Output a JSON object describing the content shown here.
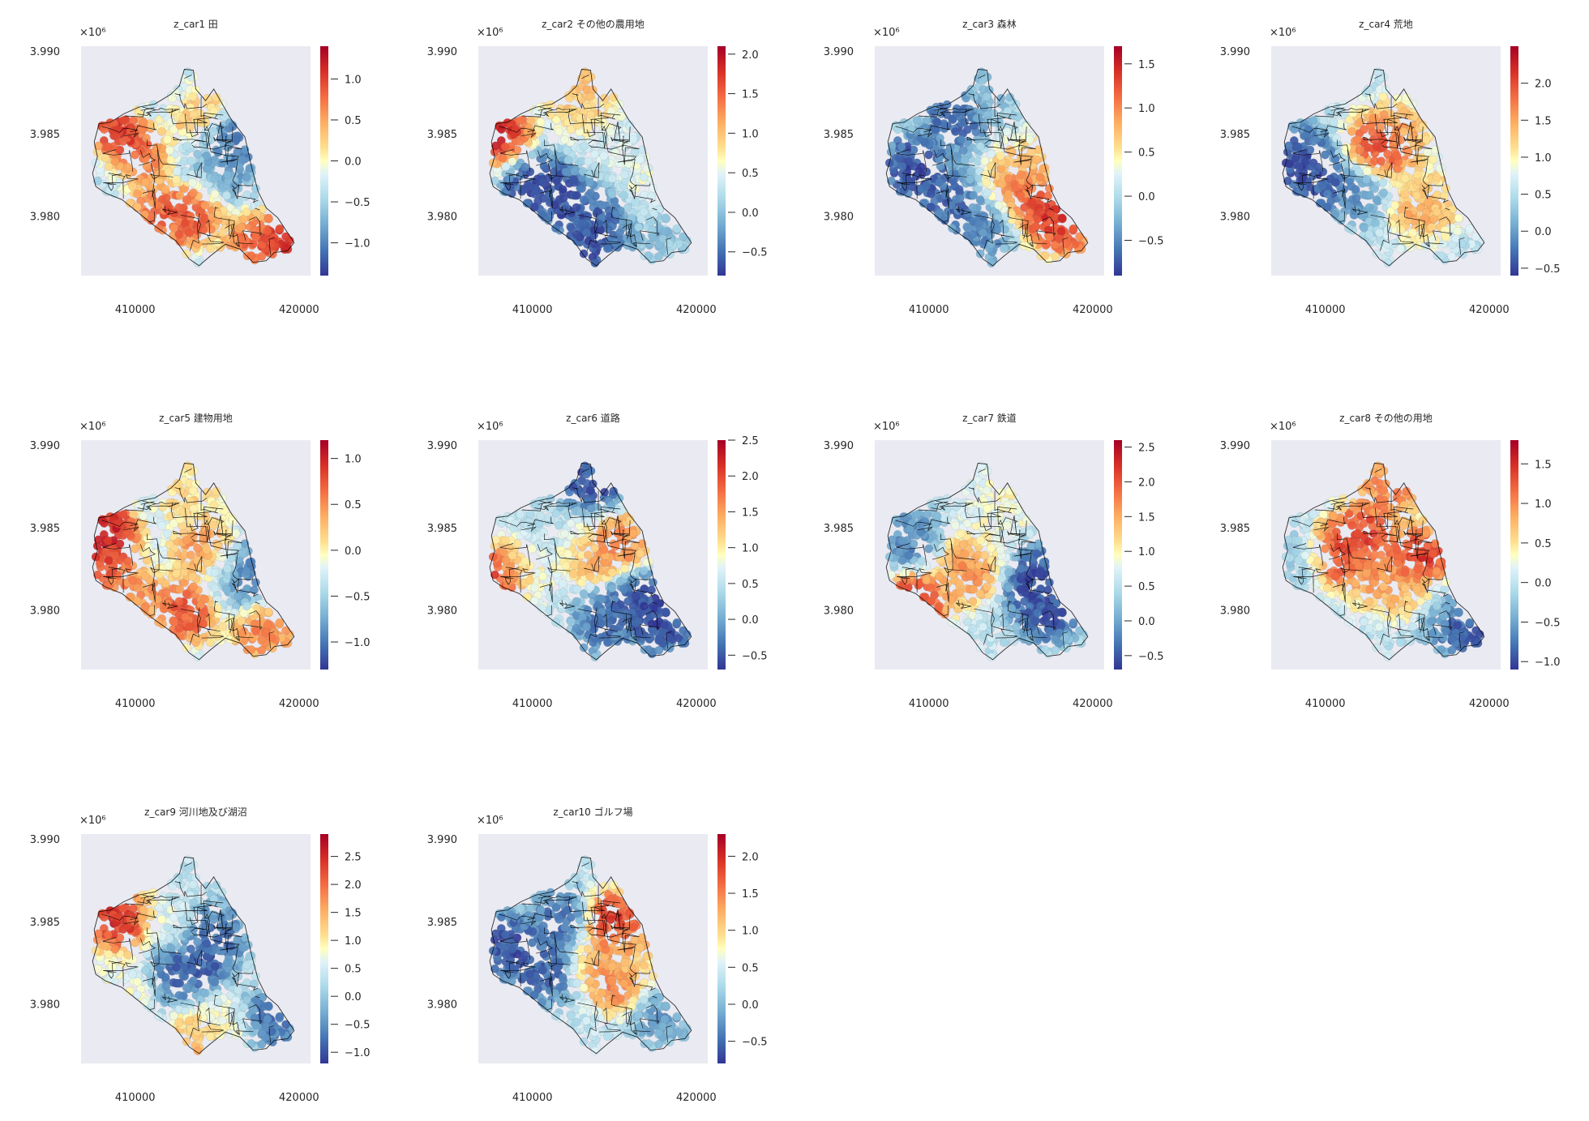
{
  "figure": {
    "colormap": "RdYlBu_r",
    "background_color": "#eaeaf2",
    "boundary_color": "#000000"
  },
  "chart_data": [
    {
      "type": "scatter",
      "title": "z_car1 田",
      "x_ticks": [
        410000,
        420000
      ],
      "x_tick_labels": [
        "410000",
        "420000"
      ],
      "y_ticks": [
        3.99,
        3.985,
        3.98
      ],
      "y_tick_labels": [
        "3.990",
        "3.985",
        "3.980"
      ],
      "y_offset_label": "×10⁶",
      "xlim": [
        406700,
        420700
      ],
      "ylim": [
        3.9764,
        3.9903
      ],
      "cmin": -1.4,
      "cmax": 1.4,
      "colorbar_ticks": [
        1.0,
        0.5,
        0.0,
        -0.5,
        -1.0
      ],
      "colorbar_tick_labels": [
        "1.0",
        "0.5",
        "0.0",
        "−0.5",
        "−1.0"
      ],
      "hotspots": [
        {
          "x": 408900,
          "y": 3.9847,
          "v": 1.3
        },
        {
          "x": 419100,
          "y": 3.9786,
          "v": 1.3
        },
        {
          "x": 417500,
          "y": 3.9787,
          "v": 1.0
        },
        {
          "x": 411500,
          "y": 3.98,
          "v": 0.9
        },
        {
          "x": 413300,
          "y": 3.98,
          "v": 1.0
        },
        {
          "x": 410000,
          "y": 3.9835,
          "v": 0.9
        },
        {
          "x": 413500,
          "y": 3.9863,
          "v": 0.6
        },
        {
          "x": 415800,
          "y": 3.9842,
          "v": -1.2
        },
        {
          "x": 416500,
          "y": 3.983,
          "v": -1.0
        },
        {
          "x": 414600,
          "y": 3.9835,
          "v": -0.6
        },
        {
          "x": 417500,
          "y": 3.9815,
          "v": -0.4
        },
        {
          "x": 412300,
          "y": 3.9873,
          "v": -0.4
        },
        {
          "x": 407800,
          "y": 3.9823,
          "v": -0.5
        }
      ]
    },
    {
      "type": "scatter",
      "title": "z_car2 その他の農用地",
      "x_ticks": [
        410000,
        420000
      ],
      "x_tick_labels": [
        "410000",
        "420000"
      ],
      "y_ticks": [
        3.99,
        3.985,
        3.98
      ],
      "y_tick_labels": [
        "3.990",
        "3.985",
        "3.980"
      ],
      "y_offset_label": "×10⁶",
      "xlim": [
        406700,
        420700
      ],
      "ylim": [
        3.9764,
        3.9903
      ],
      "cmin": -0.8,
      "cmax": 2.1,
      "colorbar_ticks": [
        2.0,
        1.5,
        1.0,
        0.5,
        0.0,
        -0.5
      ],
      "colorbar_tick_labels": [
        "2.0",
        "1.5",
        "1.0",
        "0.5",
        "0.0",
        "−0.5"
      ],
      "hotspots": [
        {
          "x": 408000,
          "y": 3.9849,
          "v": 2.0
        },
        {
          "x": 412700,
          "y": 3.9875,
          "v": 1.2
        },
        {
          "x": 413200,
          "y": 3.9868,
          "v": 0.9
        },
        {
          "x": 416800,
          "y": 3.9815,
          "v": 0.6
        },
        {
          "x": 415300,
          "y": 3.9838,
          "v": 0.4
        },
        {
          "x": 410000,
          "y": 3.982,
          "v": -0.8
        },
        {
          "x": 412000,
          "y": 3.981,
          "v": -0.8
        },
        {
          "x": 413800,
          "y": 3.9785,
          "v": -0.8
        },
        {
          "x": 414600,
          "y": 3.98,
          "v": -0.6
        },
        {
          "x": 418200,
          "y": 3.9792,
          "v": 0.0
        }
      ]
    },
    {
      "type": "scatter",
      "title": "z_car3 森林",
      "x_ticks": [
        410000,
        420000
      ],
      "x_tick_labels": [
        "410000",
        "420000"
      ],
      "y_ticks": [
        3.99,
        3.985,
        3.98
      ],
      "y_tick_labels": [
        "3.990",
        "3.985",
        "3.980"
      ],
      "y_offset_label": "×10⁶",
      "xlim": [
        406700,
        420700
      ],
      "ylim": [
        3.9764,
        3.9903
      ],
      "cmin": -0.9,
      "cmax": 1.7,
      "colorbar_ticks": [
        1.5,
        1.0,
        0.5,
        0.0,
        -0.5
      ],
      "colorbar_tick_labels": [
        "1.5",
        "1.0",
        "0.5",
        "0.0",
        "−0.5"
      ],
      "hotspots": [
        {
          "x": 416100,
          "y": 3.9818,
          "v": 1.5
        },
        {
          "x": 417600,
          "y": 3.9806,
          "v": 1.6
        },
        {
          "x": 418200,
          "y": 3.9795,
          "v": 1.4
        },
        {
          "x": 415600,
          "y": 3.9828,
          "v": 0.7
        },
        {
          "x": 416900,
          "y": 3.9825,
          "v": 0.5
        },
        {
          "x": 409000,
          "y": 3.983,
          "v": -0.9
        },
        {
          "x": 411000,
          "y": 3.981,
          "v": -0.8
        },
        {
          "x": 413000,
          "y": 3.979,
          "v": -0.6
        },
        {
          "x": 411800,
          "y": 3.986,
          "v": -0.8
        },
        {
          "x": 413600,
          "y": 3.9873,
          "v": -0.2
        }
      ]
    },
    {
      "type": "scatter",
      "title": "z_car4 荒地",
      "x_ticks": [
        410000,
        420000
      ],
      "x_tick_labels": [
        "410000",
        "420000"
      ],
      "y_ticks": [
        3.99,
        3.985,
        3.98
      ],
      "y_tick_labels": [
        "3.990",
        "3.985",
        "3.980"
      ],
      "y_offset_label": "×10⁶",
      "xlim": [
        406700,
        420700
      ],
      "ylim": [
        3.9764,
        3.9903
      ],
      "cmin": -0.6,
      "cmax": 2.5,
      "colorbar_ticks": [
        2.0,
        1.5,
        1.0,
        0.5,
        0.0,
        -0.5
      ],
      "colorbar_tick_labels": [
        "2.0",
        "1.5",
        "1.0",
        "0.5",
        "0.0",
        "−0.5"
      ],
      "hotspots": [
        {
          "x": 413300,
          "y": 3.9841,
          "v": 2.3
        },
        {
          "x": 416000,
          "y": 3.9808,
          "v": 1.8
        },
        {
          "x": 414400,
          "y": 3.985,
          "v": 1.5
        },
        {
          "x": 416400,
          "y": 3.9812,
          "v": 1.0
        },
        {
          "x": 408500,
          "y": 3.9835,
          "v": -0.6
        },
        {
          "x": 409500,
          "y": 3.982,
          "v": -0.5
        },
        {
          "x": 412000,
          "y": 3.9815,
          "v": -0.2
        }
      ]
    },
    {
      "type": "scatter",
      "title": "z_car5 建物用地",
      "x_ticks": [
        410000,
        420000
      ],
      "x_tick_labels": [
        "410000",
        "420000"
      ],
      "y_ticks": [
        3.99,
        3.985,
        3.98
      ],
      "y_tick_labels": [
        "3.990",
        "3.985",
        "3.980"
      ],
      "y_offset_label": "×10⁶",
      "xlim": [
        406700,
        420700
      ],
      "ylim": [
        3.9764,
        3.9903
      ],
      "cmin": -1.3,
      "cmax": 1.2,
      "colorbar_ticks": [
        1.0,
        0.5,
        0.0,
        -0.5,
        -1.0
      ],
      "colorbar_tick_labels": [
        "1.0",
        "0.5",
        "0.0",
        "−0.5",
        "−1.0"
      ],
      "hotspots": [
        {
          "x": 408200,
          "y": 3.9847,
          "v": 1.2
        },
        {
          "x": 407800,
          "y": 3.9825,
          "v": 0.9
        },
        {
          "x": 409800,
          "y": 3.981,
          "v": 0.6
        },
        {
          "x": 413100,
          "y": 3.98,
          "v": 0.9
        },
        {
          "x": 414400,
          "y": 3.9835,
          "v": 0.8
        },
        {
          "x": 417800,
          "y": 3.9788,
          "v": 0.7
        },
        {
          "x": 416600,
          "y": 3.9818,
          "v": -0.9
        },
        {
          "x": 417300,
          "y": 3.9826,
          "v": -1.2
        },
        {
          "x": 415200,
          "y": 3.9827,
          "v": -0.5
        },
        {
          "x": 413400,
          "y": 3.987,
          "v": 0.2
        }
      ]
    },
    {
      "type": "scatter",
      "title": "z_car6 道路",
      "x_ticks": [
        410000,
        420000
      ],
      "x_tick_labels": [
        "410000",
        "420000"
      ],
      "y_ticks": [
        3.99,
        3.985,
        3.98
      ],
      "y_tick_labels": [
        "3.990",
        "3.985",
        "3.980"
      ],
      "y_offset_label": "×10⁶",
      "xlim": [
        406700,
        420700
      ],
      "ylim": [
        3.9764,
        3.9903
      ],
      "cmin": -0.7,
      "cmax": 2.5,
      "colorbar_ticks": [
        2.5,
        2.0,
        1.5,
        1.0,
        0.5,
        0.0,
        -0.5
      ],
      "colorbar_tick_labels": [
        "2.5",
        "2.0",
        "1.5",
        "1.0",
        "0.5",
        "0.0",
        "−0.5"
      ],
      "hotspots": [
        {
          "x": 407900,
          "y": 3.9818,
          "v": 2.4
        },
        {
          "x": 413300,
          "y": 3.9837,
          "v": 1.6
        },
        {
          "x": 415200,
          "y": 3.984,
          "v": 1.8
        },
        {
          "x": 409600,
          "y": 3.9822,
          "v": 0.9
        },
        {
          "x": 412200,
          "y": 3.9845,
          "v": 0.4
        },
        {
          "x": 416500,
          "y": 3.9805,
          "v": -0.7
        },
        {
          "x": 418000,
          "y": 3.9792,
          "v": -0.7
        },
        {
          "x": 413600,
          "y": 3.9875,
          "v": -0.7
        },
        {
          "x": 414400,
          "y": 3.9792,
          "v": -0.4
        }
      ]
    },
    {
      "type": "scatter",
      "title": "z_car7 鉄道",
      "x_ticks": [
        410000,
        420000
      ],
      "x_tick_labels": [
        "410000",
        "420000"
      ],
      "y_ticks": [
        3.99,
        3.985,
        3.98
      ],
      "y_tick_labels": [
        "3.990",
        "3.985",
        "3.980"
      ],
      "y_offset_label": "×10⁶",
      "xlim": [
        406700,
        420700
      ],
      "ylim": [
        3.9764,
        3.9903
      ],
      "cmin": -0.7,
      "cmax": 2.6,
      "colorbar_ticks": [
        2.5,
        2.0,
        1.5,
        1.0,
        0.5,
        0.0,
        -0.5
      ],
      "colorbar_tick_labels": [
        "2.5",
        "2.0",
        "1.5",
        "1.0",
        "0.5",
        "0.0",
        "−0.5"
      ],
      "hotspots": [
        {
          "x": 409200,
          "y": 3.9806,
          "v": 2.5
        },
        {
          "x": 412700,
          "y": 3.9827,
          "v": 2.1
        },
        {
          "x": 411600,
          "y": 3.982,
          "v": 1.4
        },
        {
          "x": 414800,
          "y": 3.9865,
          "v": 1.0
        },
        {
          "x": 413500,
          "y": 3.984,
          "v": 0.8
        },
        {
          "x": 416200,
          "y": 3.982,
          "v": -0.7
        },
        {
          "x": 417200,
          "y": 3.98,
          "v": -0.7
        },
        {
          "x": 409000,
          "y": 3.984,
          "v": -0.3
        }
      ]
    },
    {
      "type": "scatter",
      "title": "z_car8 その他の用地",
      "x_ticks": [
        410000,
        420000
      ],
      "x_tick_labels": [
        "410000",
        "420000"
      ],
      "y_ticks": [
        3.99,
        3.985,
        3.98
      ],
      "y_tick_labels": [
        "3.990",
        "3.985",
        "3.980"
      ],
      "y_offset_label": "×10⁶",
      "xlim": [
        406700,
        420700
      ],
      "ylim": [
        3.9764,
        3.9903
      ],
      "cmin": -1.1,
      "cmax": 1.8,
      "colorbar_ticks": [
        1.5,
        1.0,
        0.5,
        0.0,
        -0.5,
        -1.0
      ],
      "colorbar_tick_labels": [
        "1.5",
        "1.0",
        "0.5",
        "0.0",
        "−0.5",
        "−1.0"
      ],
      "hotspots": [
        {
          "x": 410500,
          "y": 3.9832,
          "v": 1.5
        },
        {
          "x": 412200,
          "y": 3.9845,
          "v": 1.6
        },
        {
          "x": 415800,
          "y": 3.983,
          "v": 1.7
        },
        {
          "x": 414000,
          "y": 3.9875,
          "v": 1.2
        },
        {
          "x": 413200,
          "y": 3.982,
          "v": 1.0
        },
        {
          "x": 415500,
          "y": 3.9812,
          "v": 0.8
        },
        {
          "x": 418500,
          "y": 3.979,
          "v": -1.1
        },
        {
          "x": 417200,
          "y": 3.98,
          "v": -0.6
        },
        {
          "x": 408500,
          "y": 3.983,
          "v": -0.3
        }
      ]
    },
    {
      "type": "scatter",
      "title": "z_car9 河川地及び湖沼",
      "x_ticks": [
        410000,
        420000
      ],
      "x_tick_labels": [
        "410000",
        "420000"
      ],
      "y_ticks": [
        3.99,
        3.985,
        3.98
      ],
      "y_tick_labels": [
        "3.990",
        "3.985",
        "3.980"
      ],
      "y_offset_label": "×10⁶",
      "xlim": [
        406700,
        420700
      ],
      "ylim": [
        3.9764,
        3.9903
      ],
      "cmin": -1.2,
      "cmax": 2.9,
      "colorbar_ticks": [
        2.5,
        2.0,
        1.5,
        1.0,
        0.5,
        0.0,
        -0.5,
        -1.0
      ],
      "colorbar_tick_labels": [
        "2.5",
        "2.0",
        "1.5",
        "1.0",
        "0.5",
        "0.0",
        "−0.5",
        "−1.0"
      ],
      "hotspots": [
        {
          "x": 409100,
          "y": 3.9851,
          "v": 2.8
        },
        {
          "x": 413900,
          "y": 3.9776,
          "v": 1.6
        },
        {
          "x": 409500,
          "y": 3.981,
          "v": 0.8
        },
        {
          "x": 412000,
          "y": 3.9848,
          "v": 0.6
        },
        {
          "x": 415600,
          "y": 3.9785,
          "v": 0.8
        },
        {
          "x": 414000,
          "y": 3.9828,
          "v": -1.1
        },
        {
          "x": 412500,
          "y": 3.982,
          "v": -0.9
        },
        {
          "x": 418200,
          "y": 3.979,
          "v": -0.9
        },
        {
          "x": 414800,
          "y": 3.9842,
          "v": -0.8
        }
      ]
    },
    {
      "type": "scatter",
      "title": "z_car10 ゴルフ場",
      "x_ticks": [
        410000,
        420000
      ],
      "x_tick_labels": [
        "410000",
        "420000"
      ],
      "y_ticks": [
        3.99,
        3.985,
        3.98
      ],
      "y_tick_labels": [
        "3.990",
        "3.985",
        "3.980"
      ],
      "y_offset_label": "×10⁶",
      "xlim": [
        406700,
        420700
      ],
      "ylim": [
        3.9764,
        3.9903
      ],
      "cmin": -0.8,
      "cmax": 2.3,
      "colorbar_ticks": [
        2.0,
        1.5,
        1.0,
        0.5,
        0.0,
        -0.5
      ],
      "colorbar_tick_labels": [
        "2.0",
        "1.5",
        "1.0",
        "0.5",
        "0.0",
        "−0.5"
      ],
      "hotspots": [
        {
          "x": 414700,
          "y": 3.9848,
          "v": 2.2
        },
        {
          "x": 415900,
          "y": 3.9838,
          "v": 1.6
        },
        {
          "x": 415500,
          "y": 3.9815,
          "v": 1.9
        },
        {
          "x": 414300,
          "y": 3.9828,
          "v": 1.2
        },
        {
          "x": 416200,
          "y": 3.9825,
          "v": 0.6
        },
        {
          "x": 408500,
          "y": 3.9835,
          "v": -0.8
        },
        {
          "x": 410500,
          "y": 3.982,
          "v": -0.7
        },
        {
          "x": 412000,
          "y": 3.985,
          "v": -0.6
        },
        {
          "x": 417800,
          "y": 3.9795,
          "v": -0.3
        }
      ]
    }
  ]
}
